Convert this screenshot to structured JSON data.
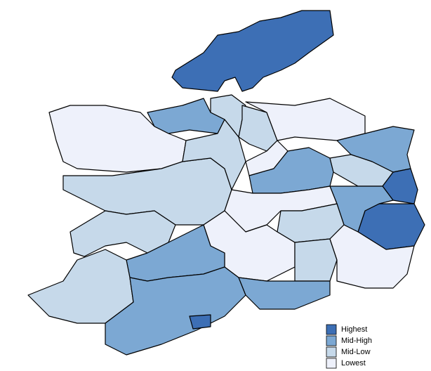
{
  "legend": [
    {
      "label": "Highest",
      "color": "#3d6fb5"
    },
    {
      "label": "Mid-High",
      "color": "#7ca8d3"
    },
    {
      "label": "Mid-Low",
      "color": "#c6d9ea"
    },
    {
      "label": "Lowest",
      "color": "#eef1fb"
    }
  ],
  "regions": [
    0,
    1,
    3,
    2,
    2,
    2,
    2,
    3,
    1,
    3,
    1,
    2,
    0,
    0,
    1,
    3,
    2,
    3,
    2,
    3,
    2,
    1,
    2,
    1,
    1,
    0
  ]
}
